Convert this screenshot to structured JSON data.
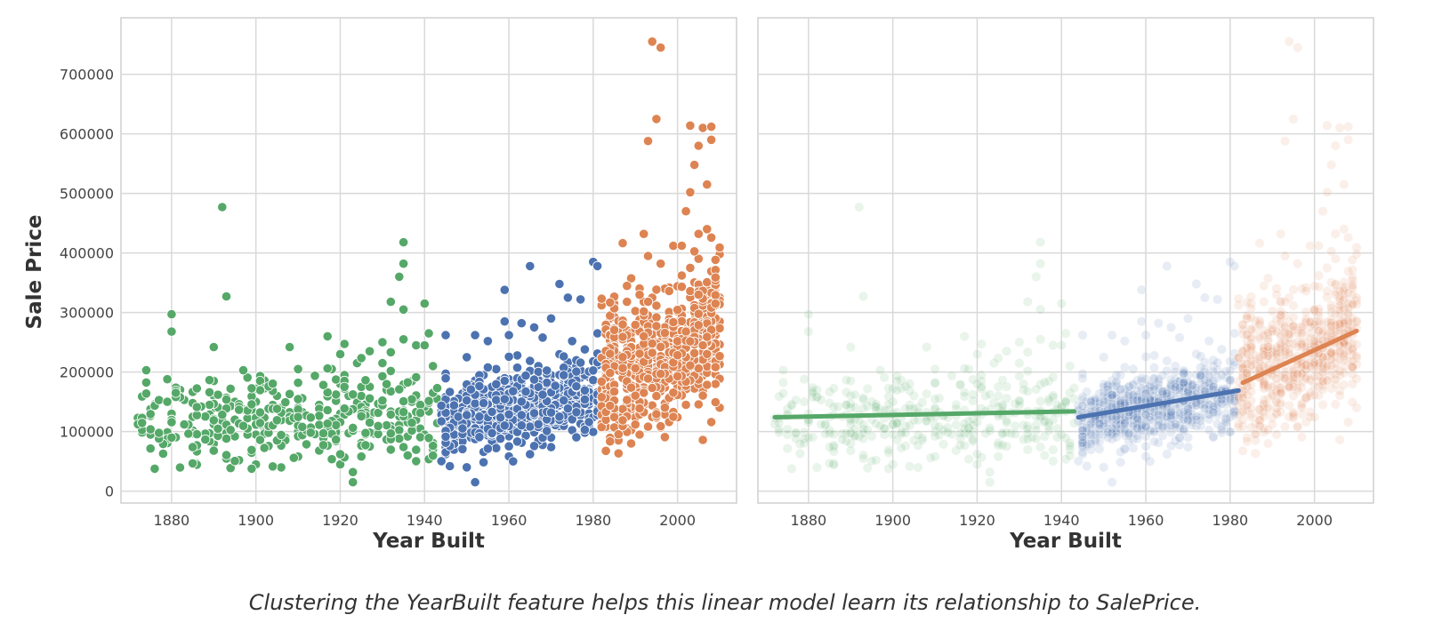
{
  "caption": "Clustering the YearBuilt feature helps this linear model learn its relationship to SalePrice.",
  "colors": {
    "cluster_old": "#55a868",
    "cluster_mid": "#4c72b0",
    "cluster_new": "#dd8452",
    "grid": "#d9d9d9"
  },
  "chart_data": [
    {
      "type": "scatter",
      "title": "",
      "xlabel": "Year Built",
      "ylabel": "Sale Price",
      "xlim": [
        1868,
        2014
      ],
      "ylim": [
        -20000,
        795000
      ],
      "xticks": [
        1880,
        1900,
        1920,
        1940,
        1960,
        1980,
        2000
      ],
      "xtick_labels": [
        "1880",
        "1900",
        "1920",
        "1940",
        "1960",
        "1980",
        "2000"
      ],
      "yticks": [
        0,
        100000,
        200000,
        300000,
        400000,
        500000,
        600000,
        700000
      ],
      "ytick_labels": [
        "0",
        "100000",
        "200000",
        "300000",
        "400000",
        "500000",
        "600000",
        "700000"
      ],
      "grid": true,
      "series": [
        {
          "cluster": 0,
          "color": "#55a868",
          "year_range": [
            1872,
            1943
          ],
          "center_price": 125000,
          "points": [
            [
              1872,
              123000
            ],
            [
              1875,
              95000
            ],
            [
              1879,
              188000
            ],
            [
              1880,
              297000
            ],
            [
              1880,
              268000
            ],
            [
              1880,
              130000
            ],
            [
              1880,
              120000
            ],
            [
              1882,
              170000
            ],
            [
              1885,
              102000
            ],
            [
              1885,
              125000
            ],
            [
              1890,
              242000
            ],
            [
              1890,
              185000
            ],
            [
              1890,
              160000
            ],
            [
              1890,
              140000
            ],
            [
              1890,
              98000
            ],
            [
              1890,
              80000
            ],
            [
              1892,
              477000
            ],
            [
              1893,
              327000
            ],
            [
              1895,
              150000
            ],
            [
              1895,
              120000
            ],
            [
              1895,
              92000
            ],
            [
              1896,
              52000
            ],
            [
              1898,
              105000
            ],
            [
              1900,
              172000
            ],
            [
              1900,
              150000
            ],
            [
              1900,
              130000
            ],
            [
              1900,
              112000
            ],
            [
              1900,
              95000
            ],
            [
              1900,
              45000
            ],
            [
              1905,
              160000
            ],
            [
              1906,
              140000
            ],
            [
              1908,
              242000
            ],
            [
              1910,
              181000
            ],
            [
              1910,
              140000
            ],
            [
              1910,
              100000
            ],
            [
              1910,
              58000
            ],
            [
              1915,
              145000
            ],
            [
              1915,
              68000
            ],
            [
              1917,
              260000
            ],
            [
              1918,
              205000
            ],
            [
              1920,
              230000
            ],
            [
              1920,
              180000
            ],
            [
              1920,
              130000
            ],
            [
              1920,
              45000
            ],
            [
              1921,
              195000
            ],
            [
              1922,
              160000
            ],
            [
              1923,
              32000
            ],
            [
              1923,
              15000
            ],
            [
              1924,
              215000
            ],
            [
              1925,
              175000
            ],
            [
              1925,
              58000
            ],
            [
              1927,
              235000
            ],
            [
              1928,
              132000
            ],
            [
              1930,
              215000
            ],
            [
              1931,
              170000
            ],
            [
              1932,
              318000
            ],
            [
              1933,
              90000
            ],
            [
              1934,
              360000
            ],
            [
              1935,
              418000
            ],
            [
              1935,
              382000
            ],
            [
              1935,
              305000
            ],
            [
              1935,
              255000
            ],
            [
              1936,
              60000
            ],
            [
              1937,
              150000
            ],
            [
              1938,
              245000
            ],
            [
              1939,
              105000
            ],
            [
              1940,
              315000
            ],
            [
              1940,
              245000
            ],
            [
              1940,
              95000
            ],
            [
              1941,
              265000
            ],
            [
              1942,
              210000
            ],
            [
              1942,
              70000
            ],
            [
              1943,
              155000
            ]
          ]
        },
        {
          "cluster": 1,
          "color": "#4c72b0",
          "year_range": [
            1944,
            1981
          ],
          "center_price": 145000,
          "points": [
            [
              1945,
              262000
            ],
            [
              1945,
              112000
            ],
            [
              1945,
              62000
            ],
            [
              1946,
              42000
            ],
            [
              1948,
              152000
            ],
            [
              1950,
              225000
            ],
            [
              1950,
              95000
            ],
            [
              1950,
              40000
            ],
            [
              1952,
              262000
            ],
            [
              1952,
              15000
            ],
            [
              1954,
              195000
            ],
            [
              1955,
              252000
            ],
            [
              1955,
              70000
            ],
            [
              1957,
              205000
            ],
            [
              1959,
              338000
            ],
            [
              1959,
              285000
            ],
            [
              1960,
              262000
            ],
            [
              1960,
              188000
            ],
            [
              1961,
              100000
            ],
            [
              1962,
              228000
            ],
            [
              1963,
              282000
            ],
            [
              1964,
              148000
            ],
            [
              1965,
              378000
            ],
            [
              1965,
              62000
            ],
            [
              1966,
              275000
            ],
            [
              1967,
              210000
            ],
            [
              1968,
              258000
            ],
            [
              1970,
              290000
            ],
            [
              1970,
              90000
            ],
            [
              1971,
              180000
            ],
            [
              1972,
              348000
            ],
            [
              1972,
              230000
            ],
            [
              1974,
              325000
            ],
            [
              1975,
              252000
            ],
            [
              1976,
              92000
            ],
            [
              1977,
              322000
            ],
            [
              1978,
              238000
            ],
            [
              1979,
              120000
            ],
            [
              1980,
              385000
            ],
            [
              1981,
              378000
            ],
            [
              1981,
              265000
            ]
          ]
        },
        {
          "cluster": 2,
          "color": "#dd8452",
          "year_range": [
            1982,
            2010
          ],
          "center_price": 245000,
          "points": [
            [
              1982,
              312000
            ],
            [
              1983,
              168000
            ],
            [
              1986,
              272000
            ],
            [
              1988,
              318000
            ],
            [
              1990,
              222000
            ],
            [
              1991,
              95000
            ],
            [
              1992,
              432000
            ],
            [
              1993,
              588000
            ],
            [
              1993,
              395000
            ],
            [
              1994,
              755000
            ],
            [
              1995,
              625000
            ],
            [
              1996,
              745000
            ],
            [
              1996,
              382000
            ],
            [
              1997,
              198000
            ],
            [
              1998,
              342000
            ],
            [
              1999,
              412000
            ],
            [
              2000,
              175000
            ],
            [
              2001,
              268000
            ],
            [
              2002,
              470000
            ],
            [
              2003,
              614000
            ],
            [
              2003,
              502000
            ],
            [
              2004,
              548000
            ],
            [
              2005,
              580000
            ],
            [
              2005,
              432000
            ],
            [
              2006,
              86000
            ],
            [
              2006,
              610000
            ],
            [
              2007,
              515000
            ],
            [
              2007,
              440000
            ],
            [
              2008,
              612000
            ],
            [
              2008,
              590000
            ],
            [
              2009,
              340000
            ],
            [
              2009,
              210000
            ],
            [
              2010,
              398000
            ]
          ]
        }
      ]
    },
    {
      "type": "scatter",
      "title": "",
      "xlabel": "Year Built",
      "ylabel": "",
      "xlim": [
        1868,
        2014
      ],
      "ylim": [
        -20000,
        795000
      ],
      "xticks": [
        1880,
        1900,
        1920,
        1940,
        1960,
        1980,
        2000
      ],
      "xtick_labels": [
        "1880",
        "1900",
        "1920",
        "1940",
        "1960",
        "1980",
        "2000"
      ],
      "grid": true,
      "point_opacity": 0.13,
      "fit_lines": [
        {
          "cluster": 0,
          "color": "#55a868",
          "x": [
            1872,
            1943
          ],
          "y": [
            124000,
            134000
          ]
        },
        {
          "cluster": 1,
          "color": "#4c72b0",
          "x": [
            1944,
            1982
          ],
          "y": [
            124000,
            169000
          ]
        },
        {
          "cluster": 2,
          "color": "#dd8452",
          "x": [
            1983,
            2010
          ],
          "y": [
            182000,
            269000
          ]
        }
      ]
    }
  ]
}
